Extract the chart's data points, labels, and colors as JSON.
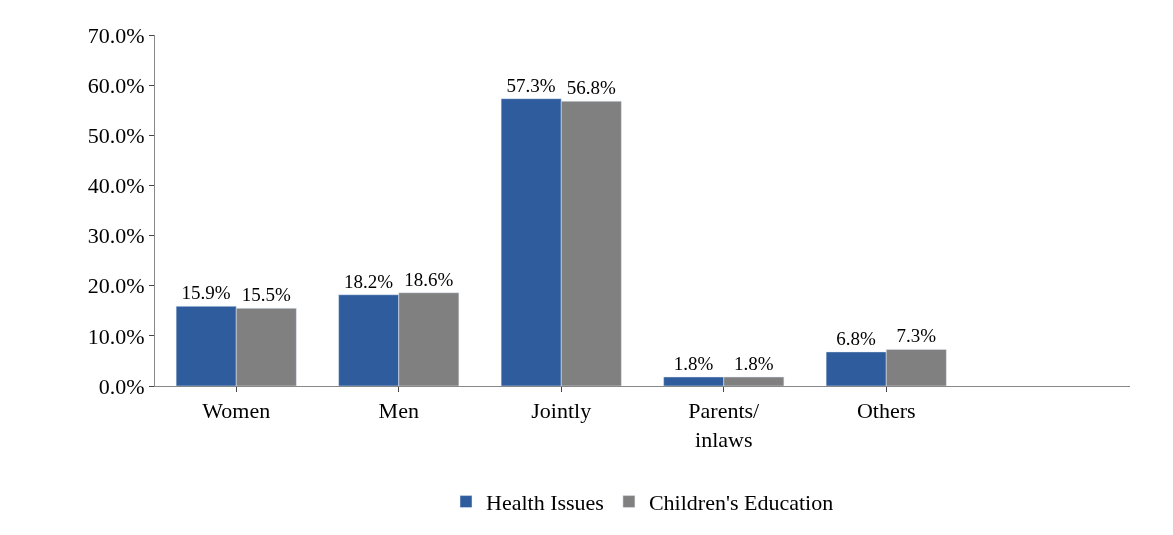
{
  "chart_data": {
    "type": "bar",
    "categories": [
      "Women",
      "Men",
      "Jointly",
      "Parents/ inlaws",
      "Others",
      null
    ],
    "series": [
      {
        "name": "Health Issues",
        "color": "#2e5c9c",
        "values": [
          15.9,
          18.2,
          57.3,
          1.8,
          6.8,
          null
        ],
        "value_labels": [
          "15.9%",
          "18.2%",
          "57.3%",
          "1.8%",
          "6.8%",
          null
        ]
      },
      {
        "name": "Children's Education",
        "color": "#808080",
        "values": [
          15.5,
          18.6,
          56.8,
          1.8,
          7.3,
          null
        ],
        "value_labels": [
          "15.5%",
          "18.6%",
          "56.8%",
          "1.8%",
          "7.3%",
          null
        ]
      }
    ],
    "ylim": [
      0,
      70
    ],
    "yticks": [
      {
        "value": 0,
        "label": "0.0%"
      },
      {
        "value": 10,
        "label": "10.0%"
      },
      {
        "value": 20,
        "label": "20.0%"
      },
      {
        "value": 30,
        "label": "30.0%"
      },
      {
        "value": 40,
        "label": "40.0%"
      },
      {
        "value": 50,
        "label": "50.0%"
      },
      {
        "value": 60,
        "label": "60.0%"
      },
      {
        "value": 70,
        "label": "70.0%"
      }
    ],
    "legend": "bottom"
  }
}
